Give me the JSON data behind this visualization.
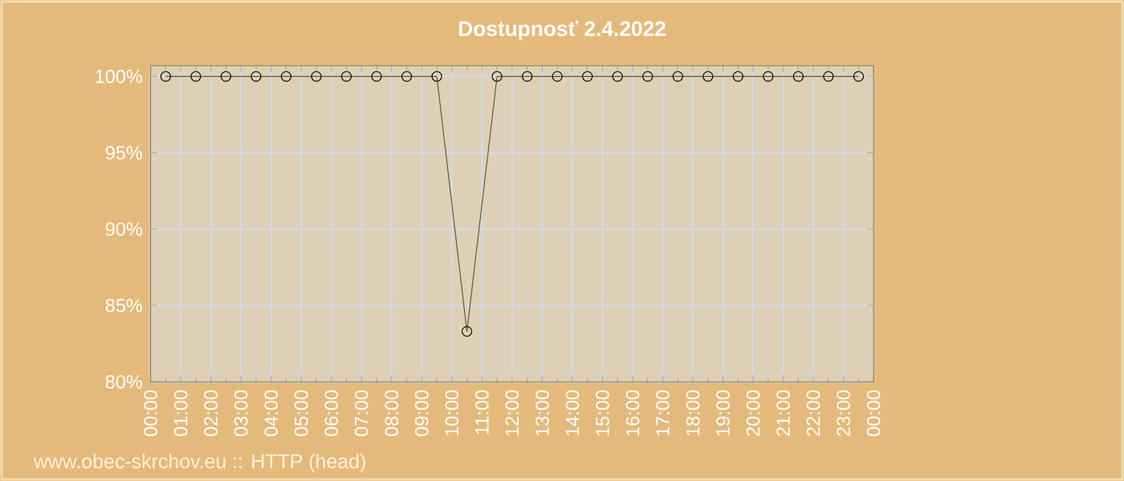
{
  "chart_data": {
    "type": "line",
    "title": "Dostupnosť 2.4.2022",
    "x": [
      0.5,
      1.5,
      2.5,
      3.5,
      4.5,
      5.5,
      6.5,
      7.5,
      8.5,
      9.5,
      10.5,
      11.5,
      12.5,
      13.5,
      14.5,
      15.5,
      16.5,
      17.5,
      18.5,
      19.5,
      20.5,
      21.5,
      22.5,
      23.5
    ],
    "series": [
      {
        "color": "#5a5a20",
        "values": [
          100,
          100,
          100,
          100,
          100,
          100,
          100,
          100,
          100,
          100,
          83.3,
          100,
          100,
          100,
          100,
          100,
          100,
          100,
          100,
          100,
          100,
          100,
          100,
          100
        ]
      }
    ],
    "xlim": [
      0,
      24
    ],
    "ylim": [
      80,
      100.7
    ],
    "xticks": [
      {
        "value": 0,
        "label": "00:00"
      },
      {
        "value": 1,
        "label": "01:00"
      },
      {
        "value": 2,
        "label": "02:00"
      },
      {
        "value": 3,
        "label": "03:00"
      },
      {
        "value": 4,
        "label": "04:00"
      },
      {
        "value": 5,
        "label": "05:00"
      },
      {
        "value": 6,
        "label": "06:00"
      },
      {
        "value": 7,
        "label": "07:00"
      },
      {
        "value": 8,
        "label": "08:00"
      },
      {
        "value": 9,
        "label": "09:00"
      },
      {
        "value": 10,
        "label": "10:00"
      },
      {
        "value": 11,
        "label": "11:00"
      },
      {
        "value": 12,
        "label": "12:00"
      },
      {
        "value": 13,
        "label": "13:00"
      },
      {
        "value": 14,
        "label": "14:00"
      },
      {
        "value": 15,
        "label": "15:00"
      },
      {
        "value": 16,
        "label": "16:00"
      },
      {
        "value": 17,
        "label": "17:00"
      },
      {
        "value": 18,
        "label": "18:00"
      },
      {
        "value": 19,
        "label": "19:00"
      },
      {
        "value": 20,
        "label": "20:00"
      },
      {
        "value": 21,
        "label": "21:00"
      },
      {
        "value": 22,
        "label": "22:00"
      },
      {
        "value": 23,
        "label": "23:00"
      },
      {
        "value": 24,
        "label": "00:00"
      }
    ],
    "yticks": [
      {
        "value": 80,
        "label": "80%"
      },
      {
        "value": 85,
        "label": "85%"
      },
      {
        "value": 90,
        "label": "90%"
      },
      {
        "value": 95,
        "label": "95%"
      },
      {
        "value": 100,
        "label": "100%"
      }
    ],
    "grid": true,
    "marker": "circle",
    "line_style": "solid",
    "annotations": [
      "www.obec-skrchov.eu :: HTTP (head)"
    ]
  }
}
